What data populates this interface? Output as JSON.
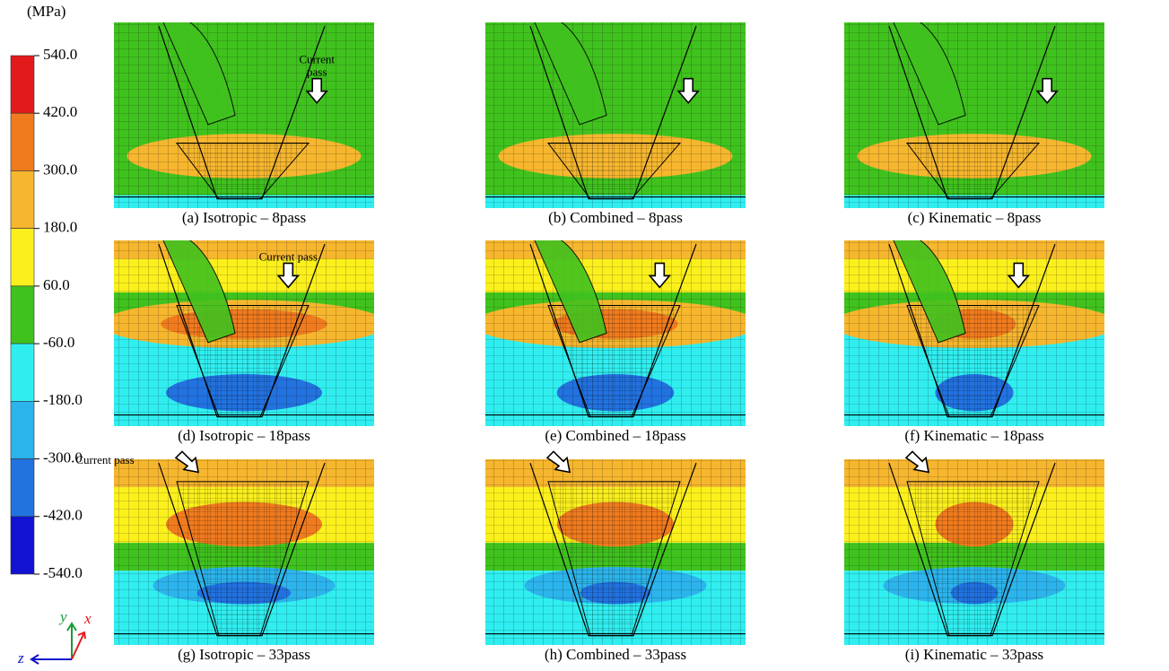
{
  "colorbar": {
    "unit": "(MPa)",
    "labels": [
      "540.0",
      "420.0",
      "300.0",
      "180.0",
      "60.0",
      "-60.0",
      "-180.0",
      "-300.0",
      "-420.0",
      "-540.0"
    ],
    "colors": [
      "#e31a1c",
      "#f07b1e",
      "#f6b62e",
      "#fbf01c",
      "#40c21e",
      "#30eef0",
      "#2cb4ec",
      "#2272e0",
      "#1212d2"
    ]
  },
  "panels": [
    {
      "caption": "(a) Isotropic – 8pass",
      "annotation": [
        "Current",
        "pass"
      ]
    },
    {
      "caption": "(b) Combined – 8pass"
    },
    {
      "caption": "(c) Kinematic – 8pass"
    },
    {
      "caption": "(d) Isotropic – 18pass",
      "annotation": [
        "Current pass"
      ]
    },
    {
      "caption": "(e) Combined – 18pass"
    },
    {
      "caption": "(f) Kinematic – 18pass"
    },
    {
      "caption": "(g) Isotropic – 33pass",
      "annotation": [
        "Current pass"
      ]
    },
    {
      "caption": "(h) Combined – 33pass"
    },
    {
      "caption": "(i) Kinematic – 33pass"
    }
  ],
  "axes_triad": {
    "y": "y",
    "x": "x",
    "z": "z"
  }
}
